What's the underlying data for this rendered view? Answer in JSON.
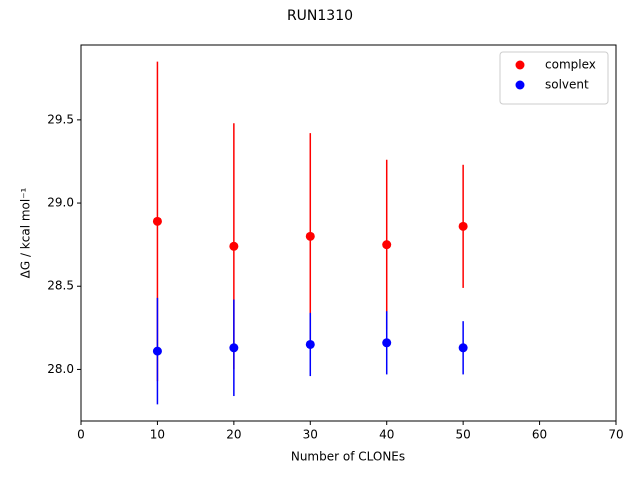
{
  "chart_data": {
    "type": "scatter",
    "title": "RUN1310",
    "x_label": "Number of CLONEs",
    "y_label": "ΔG / kcal mol⁻¹",
    "series": [
      {
        "name": "complex",
        "color": "#ff0000",
        "x": [
          10,
          20,
          30,
          40,
          50
        ],
        "values": [
          28.89,
          28.74,
          28.8,
          28.75,
          28.86
        ],
        "errors": [
          0.96,
          0.74,
          0.62,
          0.51,
          0.37
        ]
      },
      {
        "name": "solvent",
        "color": "#0000ff",
        "x": [
          10,
          20,
          30,
          40,
          50
        ],
        "values": [
          28.11,
          28.13,
          28.15,
          28.16,
          28.13
        ],
        "errors": [
          0.32,
          0.29,
          0.19,
          0.19,
          0.16
        ]
      }
    ],
    "xlim": [
      0,
      70
    ],
    "xticks": [
      0,
      10,
      20,
      30,
      40,
      50,
      60,
      70
    ],
    "ylim": [
      27.69,
      29.95
    ],
    "yticks": [
      {
        "value": 28,
        "label": "28.0"
      },
      28.5,
      {
        "value": 29,
        "label": "29.0"
      },
      29.5
    ],
    "legend": "upper right"
  }
}
